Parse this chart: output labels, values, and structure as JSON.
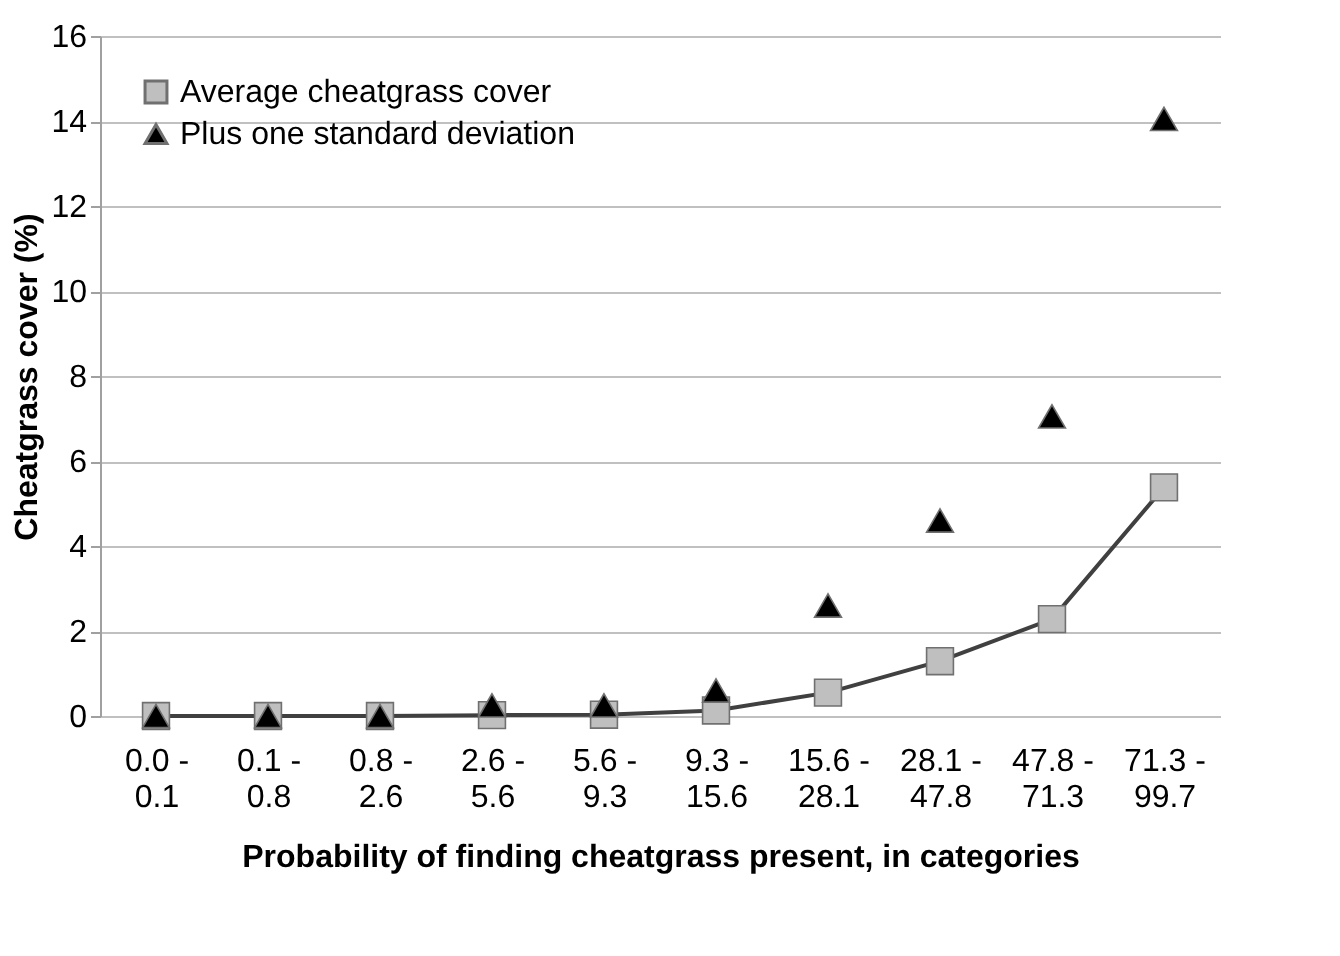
{
  "chart_data": {
    "type": "line",
    "xlabel": "Probability of finding cheatgrass present, in categories",
    "ylabel": "Cheatgrass cover (%)",
    "categories": [
      "0.0 - 0.1",
      "0.1 - 0.8",
      "0.8 - 2.6",
      "2.6 - 5.6",
      "5.6 - 9.3",
      "9.3 - 15.6",
      "15.6 - 28.1",
      "28.1 - 47.8",
      "47.8 - 71.3",
      "71.3 - 99.7"
    ],
    "series": [
      {
        "name": "Average cheatgrass cover",
        "marker": "square",
        "color": "#bfbfbf",
        "values": [
          0,
          0,
          0,
          0.02,
          0.03,
          0.13,
          0.55,
          1.29,
          2.28,
          5.38
        ]
      },
      {
        "name": "Plus one standard deviation",
        "type": "scatter",
        "marker": "triangle",
        "color": "#000000",
        "values": [
          0,
          0,
          0,
          0.25,
          0.25,
          0.6,
          2.6,
          4.6,
          7.05,
          14.05
        ]
      }
    ],
    "ylim": [
      0,
      16
    ],
    "yticks": [
      0,
      2,
      4,
      6,
      8,
      10,
      12,
      14,
      16
    ],
    "grid": "y",
    "legend": "top left"
  }
}
